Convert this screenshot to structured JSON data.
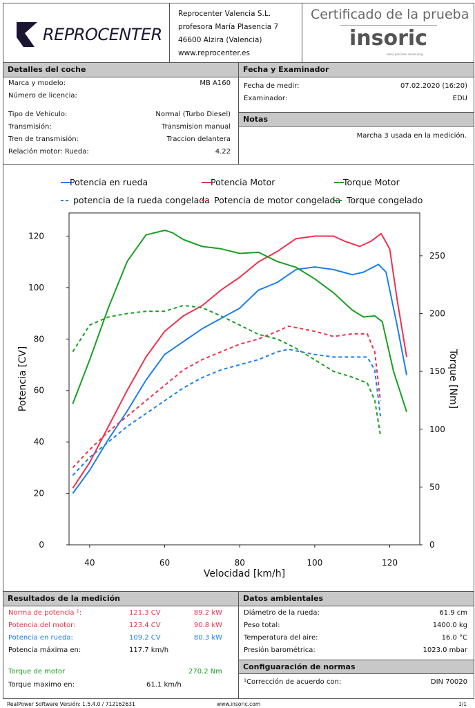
{
  "header": {
    "logo_text": "REPROCENTER",
    "company": [
      "Reprocenter Valencia S.L.",
      "profesora María Plasencia 7",
      "46600 Alzira (Valencia)",
      "www.reprocenter.es"
    ],
    "cert_title": "Certificado de la prueba",
    "brand": "insoric",
    "brand_tag": "swiss precision measuring"
  },
  "car": {
    "title": "Detalles del coche",
    "rows": [
      {
        "label": "Marca y modelo:",
        "value": "MB A160"
      },
      {
        "label": "Número de licencia:",
        "value": ""
      },
      {
        "label": "Tipo de Vehiculo:",
        "value": "Normal (Turbo Diesel)"
      },
      {
        "label": "Transmisión:",
        "value": "Transmision manual"
      },
      {
        "label": "Tren de transmisión:",
        "value": "Traccion delantera"
      },
      {
        "label": "Relación motor: Rueda:",
        "value": "4.22"
      }
    ]
  },
  "exam": {
    "title": "Fecha y Examinador",
    "rows": [
      {
        "label": "Fecha de medir:",
        "value": "07.02.2020 (16:20)"
      },
      {
        "label": "Examinador:",
        "value": "EDU"
      }
    ]
  },
  "notes": {
    "title": "Notas",
    "text": "Marcha 3 usada en la medición."
  },
  "results": {
    "title": "Resultados de la medición",
    "rows": [
      {
        "label": "Norma de potencia ¹:",
        "v1": "121.3 CV",
        "v2": "89.2 kW",
        "color": "red"
      },
      {
        "label": "Potencia del motor:",
        "v1": "123.4 CV",
        "v2": "90.8 kW",
        "color": "red"
      },
      {
        "label": "Potencia en rueda:",
        "v1": "109.2 CV",
        "v2": "80.3 kW",
        "color": "blue"
      },
      {
        "label": "Potencia máxima en:",
        "v1": "117.7 km/h",
        "v2": "",
        "color": "black"
      },
      {
        "label": "Torque de motor",
        "v1": "",
        "v2": "270.2 Nm",
        "color": "green"
      },
      {
        "label": "Torque maximo en:",
        "v1": "61.1 km/h",
        "v2": "",
        "color": "black"
      }
    ]
  },
  "ambient": {
    "title": "Datos ambientales",
    "rows": [
      {
        "label": "Diámetro de la rueda:",
        "value": "61.9 cm"
      },
      {
        "label": "Peso total:",
        "value": "1400.0 kg"
      },
      {
        "label": "Temperatura del aire:",
        "value": "16.0 °C"
      },
      {
        "label": "Presión barométrica:",
        "value": "1023.0 mbar"
      }
    ]
  },
  "norms": {
    "title": "Configuaración de normas",
    "label": "¹Corrección de acuerdo con:",
    "value": "DIN 70020"
  },
  "footer": {
    "left": "RealPower Software Versión: 1.5.4.0 / 712162631",
    "center": "www.insoric.com",
    "right": "1/1"
  },
  "chart_data": {
    "type": "line",
    "xlabel": "Velocidad [km/h]",
    "ylabel": "Potencia [CV]",
    "y2label": "Torque [Nm]",
    "xlim": [
      34.5,
      128
    ],
    "ylim": [
      0,
      129
    ],
    "y2lim": [
      0,
      287
    ],
    "xticks": [
      40,
      60,
      80,
      100,
      120
    ],
    "yticks": [
      0,
      20,
      40,
      60,
      80,
      100,
      120
    ],
    "y2ticks": [
      0,
      50,
      100,
      150,
      200,
      250
    ],
    "grid": false,
    "legend": "top",
    "series": [
      {
        "name": "Potencia en rueda",
        "color": "#1a7ef0",
        "dash": false,
        "axis": "left",
        "x": [
          35.5,
          40,
          45,
          50,
          55,
          60,
          65,
          70,
          75,
          80,
          85,
          90,
          95,
          100,
          105,
          110,
          113,
          117,
          119,
          122,
          124.5
        ],
        "y": [
          20,
          29,
          41,
          52,
          64,
          74,
          79,
          84,
          88,
          92,
          99,
          102,
          107,
          108,
          107,
          105,
          106,
          109,
          106,
          85,
          66
        ]
      },
      {
        "name": "Potencia Motor",
        "color": "#f0304a",
        "dash": false,
        "axis": "left",
        "x": [
          35.5,
          40,
          45,
          50,
          55,
          60,
          65,
          70,
          75,
          80,
          85,
          90,
          95,
          100,
          105,
          108,
          112,
          115,
          117.7,
          120,
          122,
          124.5
        ],
        "y": [
          22,
          32,
          46,
          60,
          73,
          83,
          89,
          93,
          99,
          104,
          110,
          114,
          119,
          120,
          120,
          118,
          116,
          118,
          121,
          115,
          95,
          73
        ]
      },
      {
        "name": "Torque Motor",
        "color": "#17a022",
        "dash": false,
        "axis": "right",
        "x": [
          35.5,
          40,
          45,
          50,
          55,
          60,
          62,
          65,
          70,
          75,
          80,
          85,
          90,
          95,
          100,
          105,
          110,
          113,
          116,
          118,
          121,
          124.5
        ],
        "y": [
          122,
          160,
          205,
          245,
          268,
          272,
          270,
          264,
          258,
          256,
          252,
          253,
          245,
          240,
          230,
          218,
          203,
          197,
          198,
          193,
          150,
          115
        ]
      },
      {
        "name": "potencia de la rueda congelada",
        "color": "#1a7ef0",
        "dash": true,
        "axis": "left",
        "x": [
          35.5,
          40,
          45,
          50,
          55,
          60,
          65,
          70,
          75,
          80,
          85,
          90,
          93,
          100,
          105,
          110,
          114,
          116,
          117.5
        ],
        "y": [
          27,
          34,
          40,
          46,
          51,
          56,
          61,
          65,
          68,
          70,
          72,
          75,
          76,
          74,
          73,
          73,
          73,
          68,
          50
        ]
      },
      {
        "name": "Potencia de motor congelada",
        "color": "#f0304a",
        "dash": true,
        "axis": "left",
        "x": [
          35.5,
          40,
          45,
          50,
          55,
          60,
          65,
          70,
          75,
          80,
          85,
          90,
          93,
          100,
          105,
          110,
          114,
          116,
          117.5
        ],
        "y": [
          30,
          37,
          44,
          50,
          56,
          62,
          68,
          72,
          75,
          78,
          80,
          83,
          85,
          83,
          81,
          82,
          82,
          75,
          56
        ]
      },
      {
        "name": "Torque congelado",
        "color": "#17a022",
        "dash": true,
        "axis": "right",
        "x": [
          35.5,
          40,
          45,
          50,
          55,
          60,
          65,
          70,
          75,
          80,
          85,
          90,
          95,
          100,
          105,
          110,
          114,
          116,
          117.5
        ],
        "y": [
          167,
          190,
          197,
          200,
          202,
          202,
          207,
          205,
          198,
          190,
          182,
          178,
          170,
          160,
          150,
          145,
          140,
          125,
          95
        ]
      }
    ]
  }
}
